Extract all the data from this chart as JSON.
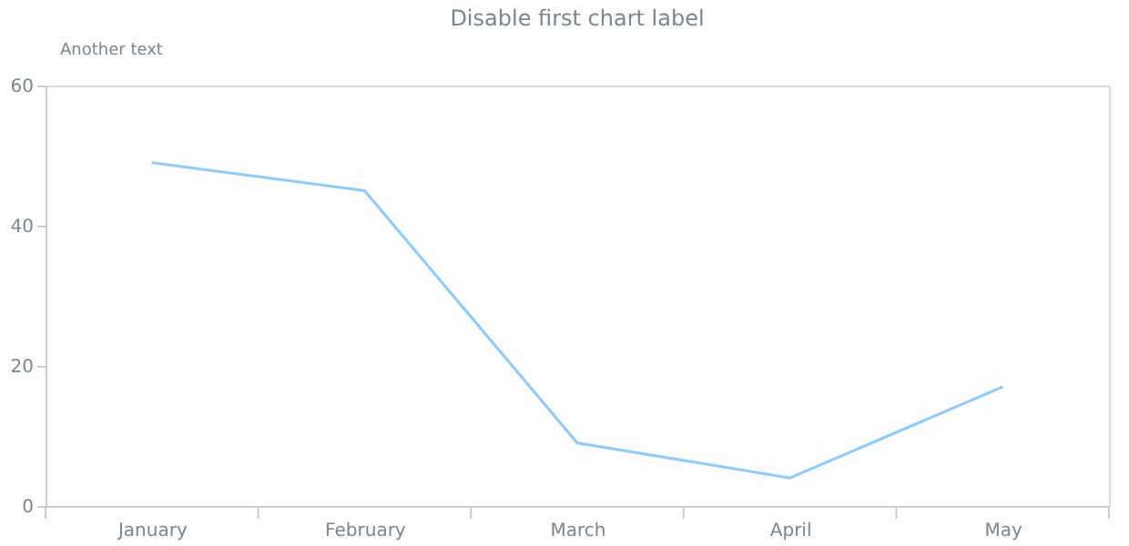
{
  "chart_data": {
    "type": "line",
    "title": "Disable first chart label",
    "annotations": [
      "Another text"
    ],
    "categories": [
      "January",
      "February",
      "March",
      "April",
      "May"
    ],
    "series": [
      {
        "color": "#90caf9",
        "values": [
          49,
          45,
          9,
          4,
          17
        ]
      }
    ],
    "ylim": [
      0,
      60
    ],
    "yticks": [
      0,
      20,
      40,
      60
    ],
    "grid": false
  }
}
